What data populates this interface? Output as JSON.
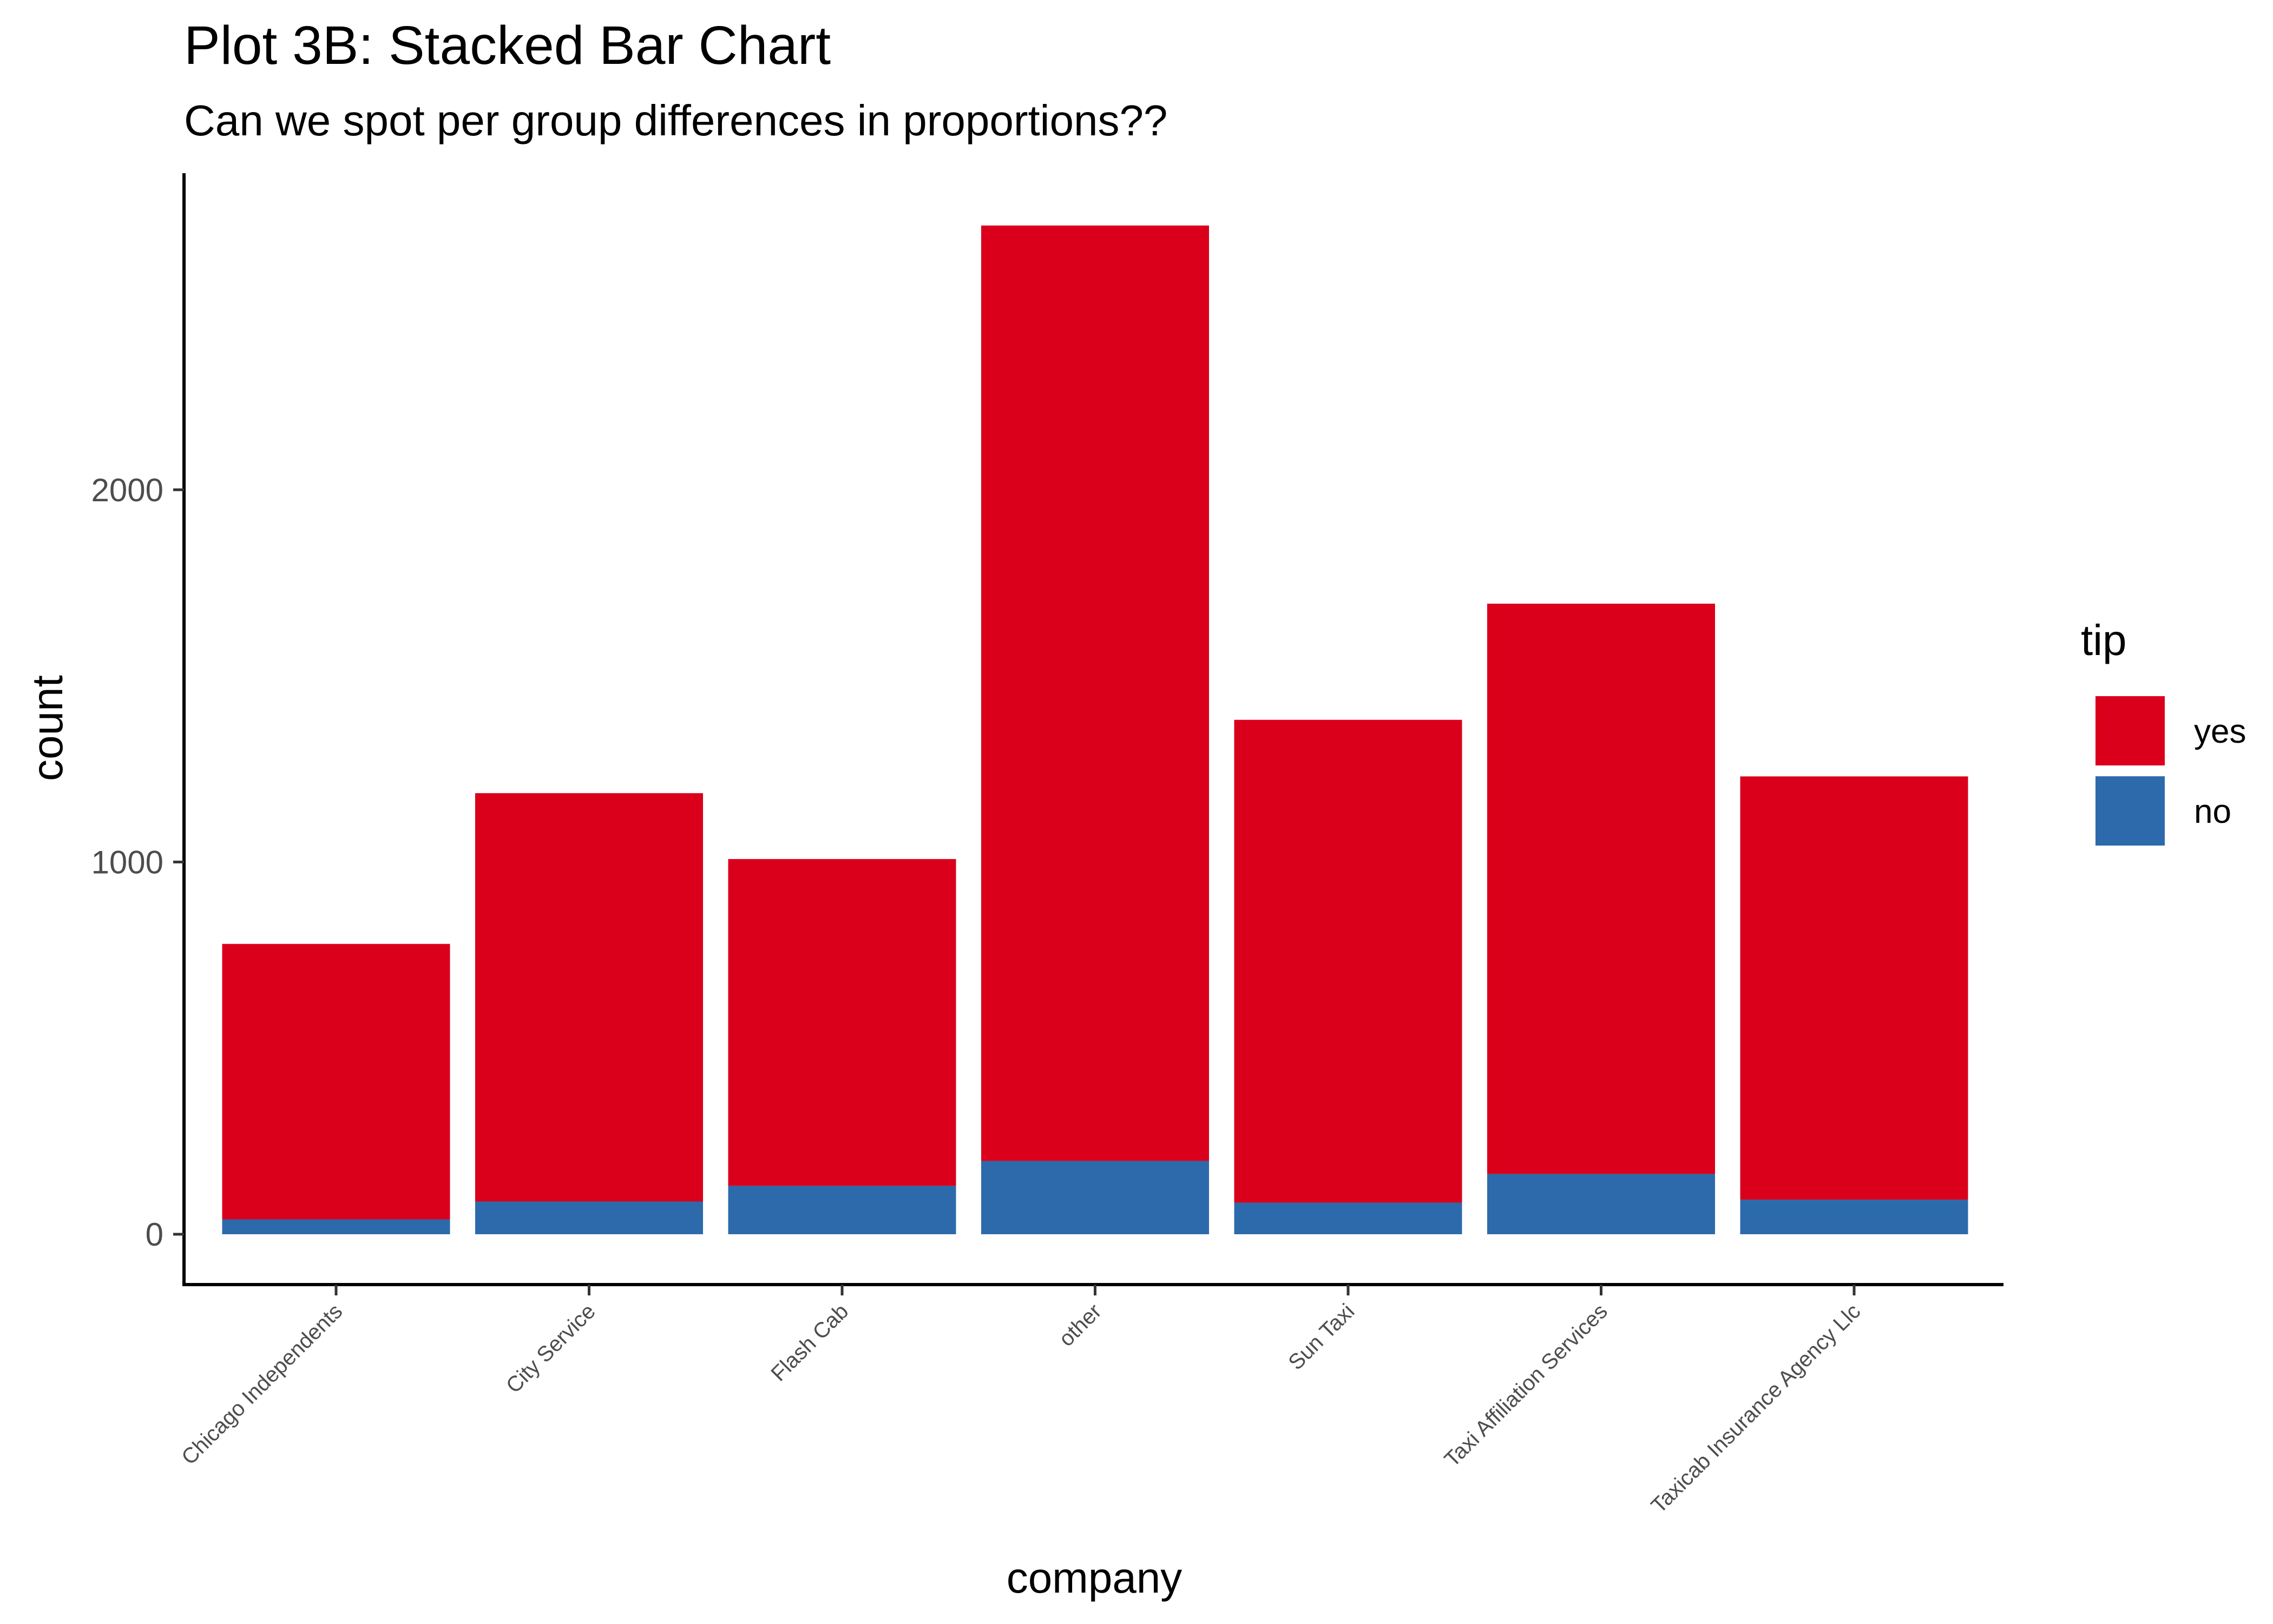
{
  "chart_data": {
    "type": "bar",
    "stacked": true,
    "title": "Plot 3B: Stacked Bar Chart",
    "subtitle": "Can we spot per group differences in proportions??",
    "xlabel": "company",
    "ylabel": "count",
    "categories": [
      "Chicago Independents",
      "City Service",
      "Flash Cab",
      "other",
      "Sun Taxi",
      "Taxi Affiliation Services",
      "Taxicab Insurance Agency Llc"
    ],
    "series": [
      {
        "name": "no",
        "color": "#2c6aab",
        "values": [
          40,
          88,
          130,
          197,
          85,
          162,
          93
        ]
      },
      {
        "name": "yes",
        "color": "#da001b",
        "values": [
          740,
          1097,
          878,
          2513,
          1297,
          1532,
          1137
        ]
      }
    ],
    "yticks": [
      0,
      1000,
      2000
    ],
    "ytick_labels": [
      "0",
      "1000",
      "2000"
    ],
    "ylim": [
      -135,
      2855
    ],
    "grid": false,
    "legend": {
      "title": "tip",
      "position": "right",
      "items": [
        {
          "label": "yes",
          "color": "#da001b"
        },
        {
          "label": "no",
          "color": "#2c6aab"
        }
      ]
    }
  }
}
